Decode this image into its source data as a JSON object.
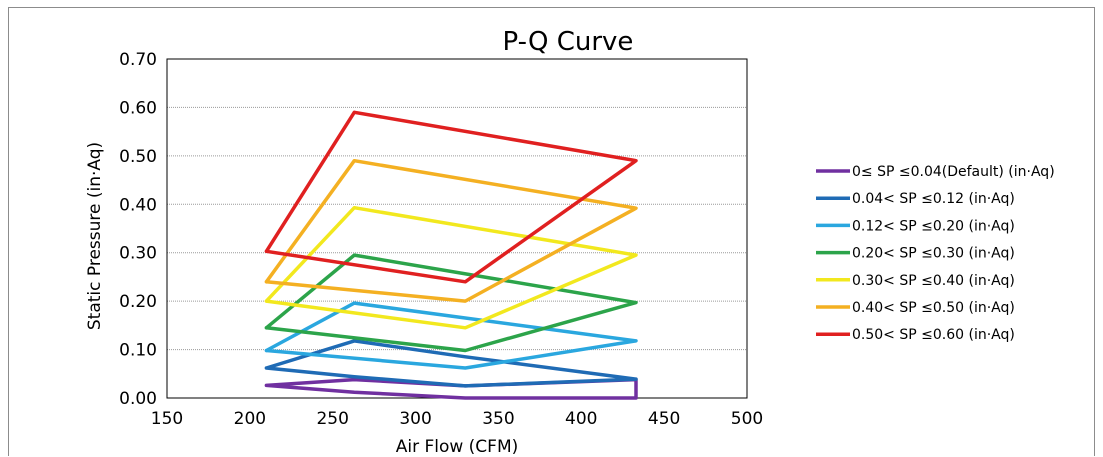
{
  "chart_data": {
    "type": "line",
    "title": "P-Q Curve",
    "xlabel": "Air Flow (CFM)",
    "ylabel": "Static Pressure (in·Aq)",
    "xlim": [
      150,
      500
    ],
    "ylim": [
      0,
      0.7
    ],
    "x_ticks": [
      150,
      200,
      250,
      300,
      350,
      400,
      450,
      500
    ],
    "x_tick_labels": [
      "150",
      "200",
      "250",
      "300",
      "350",
      "400",
      "450",
      "500"
    ],
    "y_ticks": [
      0,
      0.1,
      0.2,
      0.3,
      0.4,
      0.5,
      0.6,
      0.7
    ],
    "y_tick_labels": [
      "0.00",
      "0.10",
      "0.20",
      "0.30",
      "0.40",
      "0.50",
      "0.60",
      "0.70"
    ],
    "grid": "horizontal",
    "legend_position": "right",
    "series": [
      {
        "name": "0≤ SP ≤0.04(Default) (in·Aq)",
        "color": "#7030a0",
        "points": [
          [
            210,
            0.026
          ],
          [
            263,
            0.038
          ],
          [
            330,
            0.025
          ],
          [
            433,
            0.038
          ],
          [
            433,
            0.0
          ],
          [
            330,
            0.0
          ],
          [
            263,
            0.012
          ],
          [
            210,
            0.026
          ]
        ]
      },
      {
        "name": "0.04< SP ≤0.12 (in·Aq)",
        "color": "#1f6bb5",
        "points": [
          [
            210,
            0.062
          ],
          [
            263,
            0.118
          ],
          [
            330,
            0.085
          ],
          [
            433,
            0.039
          ],
          [
            433,
            0.039
          ],
          [
            330,
            0.025
          ],
          [
            263,
            0.044
          ],
          [
            210,
            0.062
          ]
        ]
      },
      {
        "name": "0.12< SP ≤0.20 (in·Aq)",
        "color": "#2aa7df",
        "points": [
          [
            210,
            0.098
          ],
          [
            263,
            0.196
          ],
          [
            433,
            0.118
          ],
          [
            330,
            0.062
          ],
          [
            210,
            0.098
          ]
        ]
      },
      {
        "name": "0.20< SP ≤0.30 (in·Aq)",
        "color": "#2ca44a",
        "points": [
          [
            210,
            0.145
          ],
          [
            263,
            0.295
          ],
          [
            433,
            0.197
          ],
          [
            330,
            0.098
          ],
          [
            210,
            0.145
          ]
        ]
      },
      {
        "name": "0.30< SP ≤0.40 (in·Aq)",
        "color": "#f2e81e",
        "points": [
          [
            210,
            0.2
          ],
          [
            263,
            0.393
          ],
          [
            433,
            0.295
          ],
          [
            330,
            0.145
          ],
          [
            210,
            0.2
          ]
        ]
      },
      {
        "name": "0.40< SP ≤0.50 (in·Aq)",
        "color": "#f4b022",
        "points": [
          [
            210,
            0.24
          ],
          [
            263,
            0.49
          ],
          [
            433,
            0.392
          ],
          [
            330,
            0.2
          ],
          [
            210,
            0.24
          ]
        ]
      },
      {
        "name": "0.50< SP ≤0.60 (in·Aq)",
        "color": "#e02020",
        "points": [
          [
            210,
            0.303
          ],
          [
            263,
            0.59
          ],
          [
            433,
            0.49
          ],
          [
            330,
            0.24
          ],
          [
            210,
            0.303
          ]
        ]
      }
    ]
  }
}
